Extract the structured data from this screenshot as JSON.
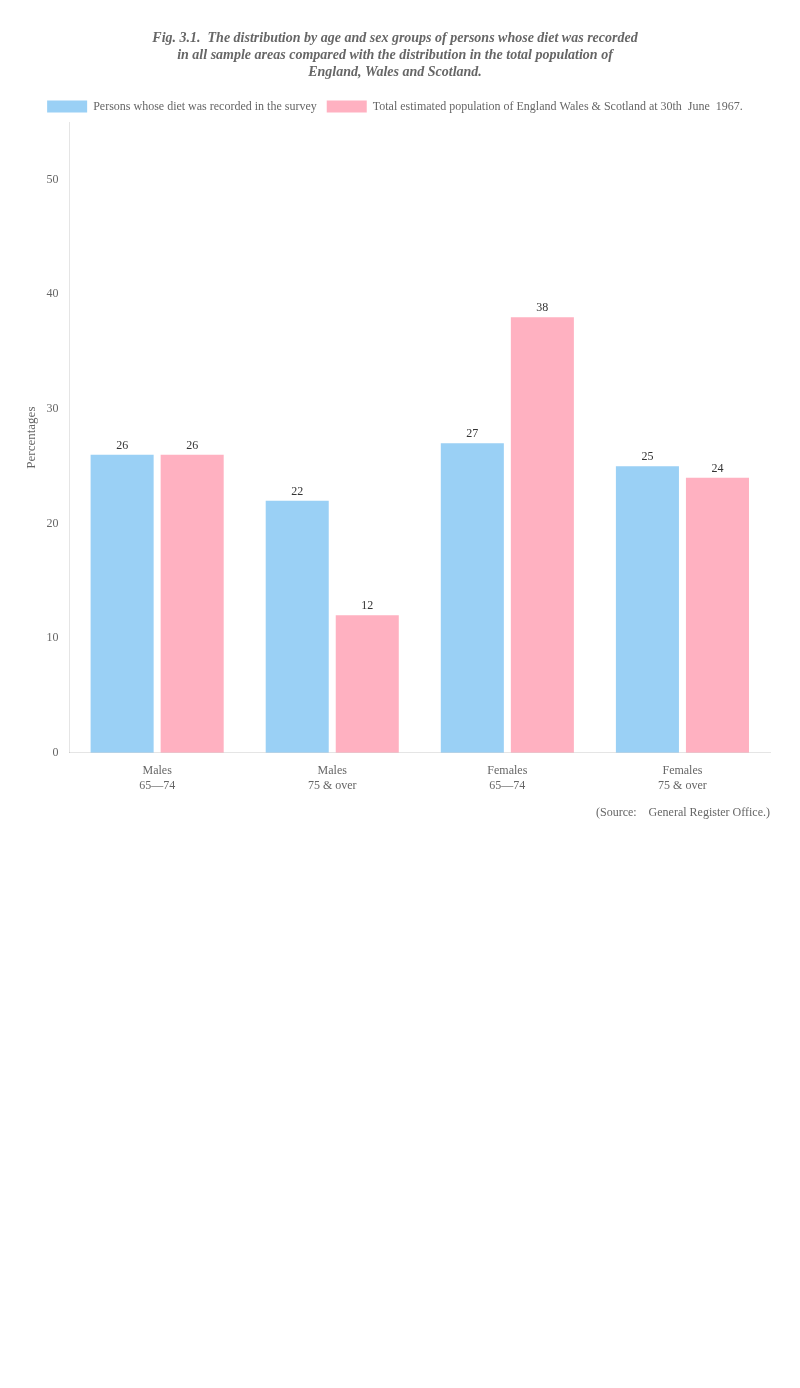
{
  "chart_data": {
    "type": "bar",
    "title": "Fig. 3.1.  The distribution by age and sex groups of persons whose diet was recorded\nin all sample areas compared with the distribution in the total population of\nEngland, Wales and Scotland.",
    "ylabel": "Percentages",
    "categories": [
      "Males\n65—74",
      "Males\n75 & over",
      "Females\n65—74",
      "Females\n75 & over"
    ],
    "series": [
      {
        "name": "Persons whose diet was recorded in the survey",
        "values": [
          26,
          22,
          27,
          25
        ]
      },
      {
        "name": "Total estimated population of England Wales & Scotland at 30th  June  1967.",
        "values": [
          26,
          12,
          38,
          24
        ]
      }
    ],
    "ylim": [
      0,
      55
    ],
    "yticks": [
      0,
      10,
      20,
      30,
      40,
      50
    ],
    "grid": false,
    "legend": "top",
    "data_labels": true,
    "annotations": [
      "(Source:    General Register Office.)"
    ]
  }
}
